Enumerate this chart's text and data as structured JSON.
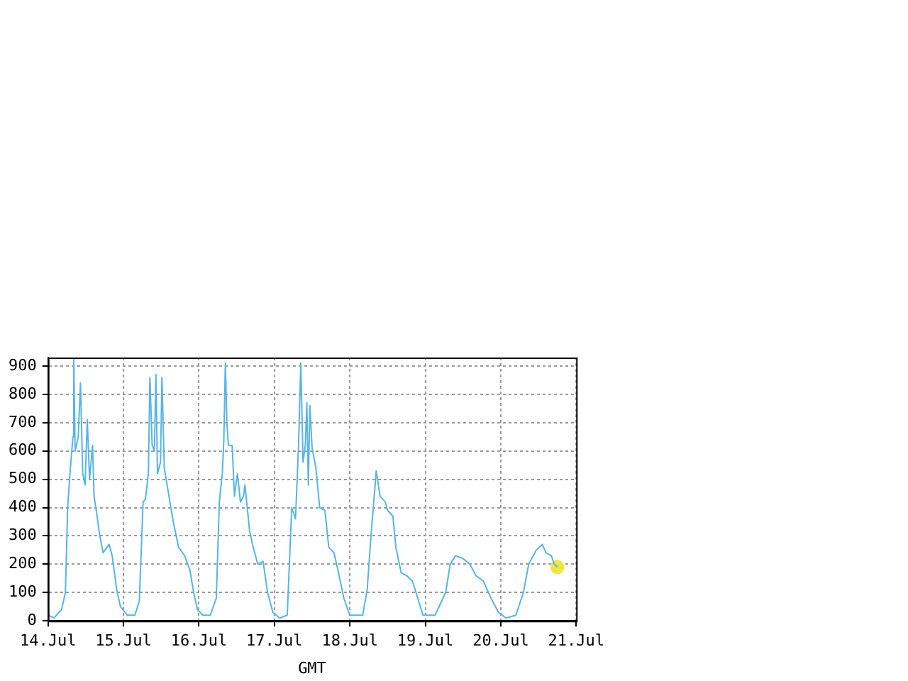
{
  "chart_data": {
    "type": "line",
    "xlabel": "GMT",
    "xlim": [
      "--07-14",
      "--07-21"
    ],
    "xticks": [
      {
        "value": "--07-14",
        "label": "14.Jul"
      },
      {
        "value": "--07-15",
        "label": "15.Jul"
      },
      {
        "value": "--07-16",
        "label": "16.Jul"
      },
      {
        "value": "--07-17",
        "label": "17.Jul"
      },
      {
        "value": "--07-18",
        "label": "18.Jul"
      },
      {
        "value": "--07-19",
        "label": "19.Jul"
      },
      {
        "value": "--07-20",
        "label": "20.Jul"
      },
      {
        "value": "--07-21",
        "label": "21.Jul"
      }
    ],
    "ylim": [
      0,
      930
    ],
    "yticks": [
      0,
      100,
      200,
      300,
      400,
      500,
      600,
      700,
      800,
      900
    ],
    "grid": true,
    "legend": false,
    "marker": "none",
    "line_style": "solid",
    "series": [
      {
        "color": "#56b4e9",
        "x": [
          "--07-14T00:00",
          "--07-14T01:55",
          "--07-14T04:19",
          "--07-14T05:31",
          "--07-14T06:14",
          "--07-14T06:58",
          "--07-14T07:55",
          "--07-14T08:10",
          "--07-14T08:38",
          "--07-14T09:36",
          "--07-14T10:19",
          "--07-14T11:02",
          "--07-14T11:46",
          "--07-14T12:29",
          "--07-14T13:12",
          "--07-14T14:10",
          "--07-14T14:38",
          "--07-14T15:36",
          "--07-14T16:19",
          "--07-14T17:31",
          "--07-14T19:26",
          "--07-14T20:24",
          "--07-14T21:50",
          "--07-14T23:02",
          "--07-15T01:12",
          "--07-15T03:36",
          "--07-15T05:02",
          "--07-15T06:14",
          "--07-15T06:58",
          "--07-15T07:55",
          "--07-15T08:24",
          "--07-15T09:07",
          "--07-15T09:50",
          "--07-15T10:19",
          "--07-15T10:48",
          "--07-15T11:46",
          "--07-15T12:14",
          "--07-15T12:58",
          "--07-15T14:10",
          "--07-15T15:50",
          "--07-15T17:31",
          "--07-15T19:26",
          "--07-15T21:07",
          "--07-15T22:19",
          "--07-15T23:31",
          "--07-16T01:12",
          "--07-16T03:36",
          "--07-16T05:31",
          "--07-16T06:29",
          "--07-16T07:26",
          "--07-16T07:55",
          "--07-16T08:24",
          "--07-16T08:53",
          "--07-16T09:22",
          "--07-16T10:34",
          "--07-16T11:17",
          "--07-16T12:14",
          "--07-16T13:12",
          "--07-16T14:10",
          "--07-16T14:38",
          "--07-16T16:05",
          "--07-16T17:02",
          "--07-16T18:43",
          "--07-16T20:24",
          "--07-16T21:50",
          "--07-16T23:31",
          "--07-17T01:41",
          "--07-17T04:05",
          "--07-17T05:31",
          "--07-17T06:43",
          "--07-17T07:41",
          "--07-17T08:24",
          "--07-17T09:07",
          "--07-17T09:50",
          "--07-17T10:19",
          "--07-17T10:48",
          "--07-17T11:17",
          "--07-17T12:00",
          "--07-17T13:12",
          "--07-17T14:24",
          "--07-17T16:05",
          "--07-17T17:17",
          "--07-17T18:58",
          "--07-17T20:24",
          "--07-17T22:05",
          "--07-18T00:00",
          "--07-18T04:05",
          "--07-18T05:31",
          "--07-18T06:43",
          "--07-18T07:41",
          "--07-18T08:24",
          "--07-18T09:36",
          "--07-18T11:17",
          "--07-18T12:00",
          "--07-18T13:41",
          "--07-18T14:38",
          "--07-18T16:19",
          "--07-18T18:00",
          "--07-18T19:55",
          "--07-18T21:36",
          "--07-18T23:17",
          "--07-19T03:07",
          "--07-19T06:29",
          "--07-19T07:55",
          "--07-19T09:36",
          "--07-19T12:00",
          "--07-19T14:10",
          "--07-19T16:05",
          "--07-19T18:29",
          "--07-19T20:53",
          "--07-19T23:17",
          "--07-20T01:41",
          "--07-20T04:48",
          "--07-20T07:12",
          "--07-20T08:53",
          "--07-20T11:17",
          "--07-20T13:12",
          "--07-20T14:24",
          "--07-20T16:05",
          "--07-20T17:02",
          "--07-20T18:00"
        ],
        "values": [
          20,
          10,
          40,
          100,
          400,
          520,
          650,
          930,
          600,
          650,
          840,
          520,
          480,
          710,
          500,
          620,
          440,
          370,
          310,
          240,
          270,
          230,
          110,
          50,
          20,
          20,
          70,
          420,
          430,
          520,
          860,
          620,
          600,
          870,
          520,
          560,
          860,
          540,
          460,
          350,
          260,
          230,
          180,
          100,
          40,
          20,
          20,
          80,
          420,
          520,
          640,
          910,
          700,
          620,
          620,
          440,
          520,
          420,
          440,
          480,
          320,
          270,
          200,
          210,
          100,
          30,
          10,
          20,
          400,
          360,
          620,
          910,
          560,
          620,
          770,
          480,
          760,
          610,
          540,
          400,
          390,
          260,
          240,
          170,
          80,
          20,
          20,
          110,
          300,
          430,
          530,
          440,
          420,
          390,
          370,
          260,
          170,
          160,
          140,
          80,
          20,
          20,
          100,
          200,
          230,
          220,
          200,
          160,
          140,
          80,
          30,
          10,
          20,
          100,
          200,
          250,
          270,
          240,
          230,
          200,
          190
        ]
      },
      {
        "type": "scatter",
        "color": "#f0e442",
        "marker": "circle",
        "x": [
          "--07-20T18:00"
        ],
        "values": [
          190
        ]
      }
    ]
  }
}
